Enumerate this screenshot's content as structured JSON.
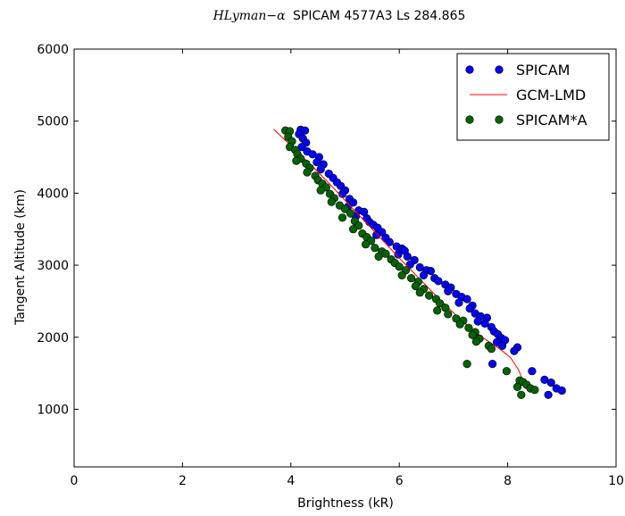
{
  "chart_data": {
    "type": "scatter",
    "title_math": "HLyman−α",
    "title_text": "SPICAM 4577A3 Ls 284.865",
    "xlabel": "Brightness (kR)",
    "ylabel": "Tangent Altitude (km)",
    "xlim": [
      0,
      10
    ],
    "ylim": [
      200,
      6000
    ],
    "x_ticks": [
      0,
      2,
      4,
      6,
      8,
      10
    ],
    "y_ticks": [
      1000,
      2000,
      3000,
      4000,
      5000,
      6000
    ],
    "x_tick_labels": [
      "0",
      "2",
      "4",
      "6",
      "8",
      "10"
    ],
    "y_tick_labels": [
      "1000",
      "2000",
      "3000",
      "4000",
      "5000",
      "6000"
    ],
    "legend_position": "top-right",
    "grid": false,
    "series": [
      {
        "name": "SPICAM",
        "kind": "scatter",
        "color": "#0000ff",
        "points": [
          [
            4.18,
            4880
          ],
          [
            4.26,
            4870
          ],
          [
            4.15,
            4820
          ],
          [
            4.22,
            4760
          ],
          [
            4.28,
            4700
          ],
          [
            4.2,
            4640
          ],
          [
            4.3,
            4580
          ],
          [
            4.4,
            4540
          ],
          [
            4.52,
            4500
          ],
          [
            4.48,
            4430
          ],
          [
            4.6,
            4400
          ],
          [
            4.55,
            4330
          ],
          [
            4.7,
            4270
          ],
          [
            4.78,
            4210
          ],
          [
            4.85,
            4150
          ],
          [
            4.92,
            4100
          ],
          [
            5.0,
            4040
          ],
          [
            4.95,
            3990
          ],
          [
            5.08,
            3920
          ],
          [
            5.15,
            3870
          ],
          [
            5.05,
            3810
          ],
          [
            5.25,
            3760
          ],
          [
            5.35,
            3740
          ],
          [
            5.2,
            3680
          ],
          [
            5.4,
            3650
          ],
          [
            5.45,
            3600
          ],
          [
            5.52,
            3560
          ],
          [
            5.6,
            3520
          ],
          [
            5.68,
            3460
          ],
          [
            5.58,
            3420
          ],
          [
            5.75,
            3380
          ],
          [
            5.82,
            3320
          ],
          [
            5.95,
            3260
          ],
          [
            6.05,
            3230
          ],
          [
            6.1,
            3200
          ],
          [
            5.98,
            3150
          ],
          [
            6.15,
            3120
          ],
          [
            6.28,
            3070
          ],
          [
            6.2,
            3010
          ],
          [
            6.38,
            2970
          ],
          [
            6.5,
            2930
          ],
          [
            6.58,
            2920
          ],
          [
            6.45,
            2860
          ],
          [
            6.65,
            2820
          ],
          [
            6.72,
            2780
          ],
          [
            6.85,
            2730
          ],
          [
            6.95,
            2690
          ],
          [
            6.9,
            2640
          ],
          [
            7.05,
            2600
          ],
          [
            7.15,
            2560
          ],
          [
            7.25,
            2530
          ],
          [
            7.1,
            2480
          ],
          [
            7.35,
            2440
          ],
          [
            7.3,
            2400
          ],
          [
            7.4,
            2330
          ],
          [
            7.5,
            2290
          ],
          [
            7.62,
            2270
          ],
          [
            7.45,
            2220
          ],
          [
            7.58,
            2190
          ],
          [
            7.7,
            2140
          ],
          [
            7.75,
            2080
          ],
          [
            7.82,
            2040
          ],
          [
            7.88,
            1990
          ],
          [
            7.95,
            1960
          ],
          [
            7.8,
            1930
          ],
          [
            7.9,
            1880
          ],
          [
            8.18,
            1860
          ],
          [
            8.12,
            1810
          ],
          [
            7.72,
            1630
          ],
          [
            8.45,
            1530
          ],
          [
            8.68,
            1410
          ],
          [
            8.8,
            1370
          ],
          [
            8.9,
            1290
          ],
          [
            9.0,
            1260
          ],
          [
            8.75,
            1200
          ]
        ]
      },
      {
        "name": "GCM-LMD",
        "kind": "line",
        "color": "#ff0000",
        "points": [
          [
            3.68,
            4890
          ],
          [
            4.0,
            4660
          ],
          [
            4.4,
            4370
          ],
          [
            4.8,
            4060
          ],
          [
            5.2,
            3740
          ],
          [
            5.6,
            3420
          ],
          [
            6.0,
            3100
          ],
          [
            6.4,
            2790
          ],
          [
            6.8,
            2480
          ],
          [
            7.2,
            2200
          ],
          [
            7.55,
            1990
          ],
          [
            7.85,
            1840
          ],
          [
            8.05,
            1720
          ],
          [
            8.2,
            1550
          ],
          [
            8.28,
            1400
          ],
          [
            8.33,
            1330
          ]
        ]
      },
      {
        "name": "SPICAM*A",
        "kind": "scatter",
        "color": "#006400",
        "points": [
          [
            3.9,
            4870
          ],
          [
            3.98,
            4860
          ],
          [
            3.95,
            4780
          ],
          [
            4.02,
            4720
          ],
          [
            3.98,
            4640
          ],
          [
            4.08,
            4600
          ],
          [
            4.12,
            4540
          ],
          [
            4.18,
            4480
          ],
          [
            4.1,
            4450
          ],
          [
            4.28,
            4410
          ],
          [
            4.35,
            4350
          ],
          [
            4.3,
            4290
          ],
          [
            4.45,
            4240
          ],
          [
            4.5,
            4180
          ],
          [
            4.58,
            4130
          ],
          [
            4.65,
            4080
          ],
          [
            4.55,
            4040
          ],
          [
            4.72,
            3990
          ],
          [
            4.8,
            3930
          ],
          [
            4.75,
            3880
          ],
          [
            4.9,
            3830
          ],
          [
            5.0,
            3780
          ],
          [
            5.1,
            3720
          ],
          [
            4.95,
            3660
          ],
          [
            5.18,
            3610
          ],
          [
            5.25,
            3550
          ],
          [
            5.15,
            3500
          ],
          [
            5.32,
            3440
          ],
          [
            5.4,
            3390
          ],
          [
            5.48,
            3340
          ],
          [
            5.38,
            3290
          ],
          [
            5.55,
            3240
          ],
          [
            5.68,
            3190
          ],
          [
            5.75,
            3160
          ],
          [
            5.62,
            3120
          ],
          [
            5.85,
            3080
          ],
          [
            5.92,
            3030
          ],
          [
            6.0,
            2980
          ],
          [
            6.12,
            2930
          ],
          [
            6.05,
            2860
          ],
          [
            6.22,
            2820
          ],
          [
            6.35,
            2770
          ],
          [
            6.3,
            2710
          ],
          [
            6.45,
            2670
          ],
          [
            6.38,
            2620
          ],
          [
            6.55,
            2580
          ],
          [
            6.68,
            2530
          ],
          [
            6.75,
            2470
          ],
          [
            6.85,
            2410
          ],
          [
            6.7,
            2370
          ],
          [
            6.9,
            2320
          ],
          [
            7.05,
            2260
          ],
          [
            7.18,
            2230
          ],
          [
            7.12,
            2180
          ],
          [
            7.28,
            2130
          ],
          [
            7.4,
            2070
          ],
          [
            7.35,
            2030
          ],
          [
            7.48,
            1980
          ],
          [
            7.42,
            1940
          ],
          [
            7.65,
            1880
          ],
          [
            7.7,
            1840
          ],
          [
            7.25,
            1630
          ],
          [
            7.98,
            1530
          ],
          [
            8.22,
            1400
          ],
          [
            8.28,
            1380
          ],
          [
            8.35,
            1340
          ],
          [
            8.42,
            1290
          ],
          [
            8.5,
            1270
          ],
          [
            8.18,
            1310
          ],
          [
            8.25,
            1200
          ]
        ]
      }
    ]
  }
}
